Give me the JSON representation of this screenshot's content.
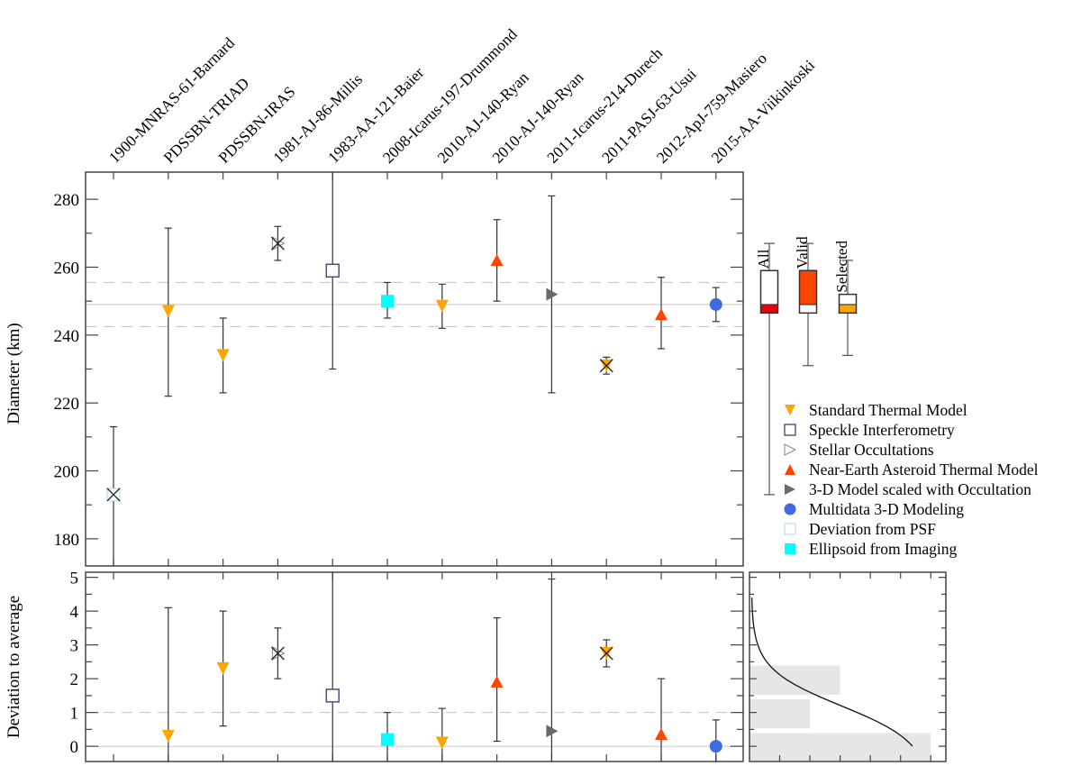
{
  "chart_data": {
    "type": "scatter",
    "title": "",
    "categories": [
      "1900-MNRAS-61-Barnard",
      "PDSSBN-TRIAD",
      "PDSSBN-IRAS",
      "1981-AJ-86-Millis",
      "1983-AA-121-Baier",
      "2008-Icarus-197-Drummond",
      "2010-AJ-140-Ryan",
      "2010-AJ-140-Ryan",
      "2011-Icarus-214-Durech",
      "2011-PASJ-63-Usui",
      "2012-ApJ-759-Masiero",
      "2015-AA-Viikinkoski"
    ],
    "colors": {
      "stm": "#ffa500",
      "speckle": "#333377",
      "occultation": "#888888",
      "neatm": "#ff4500",
      "model3d_occ": "#696969",
      "multidata": "#4169e1",
      "psf": "#add8e6",
      "ellipsoid": "#00ffff",
      "box_all": "#e8000b",
      "box_valid": "#ff4500",
      "box_selected": "#ffa500",
      "histogram": "#e6e6e6"
    },
    "diameter_panel": {
      "ylabel": "Diameter (km)",
      "ylim": [
        172,
        288
      ],
      "yticks": [
        180,
        200,
        220,
        240,
        260,
        280
      ],
      "mean": 249,
      "mean_minus_sigma": 242.5,
      "mean_plus_sigma": 255.5,
      "points": [
        {
          "category": 0,
          "method": "psf",
          "value": 193,
          "err_low": 172,
          "err_high": 213
        },
        {
          "category": 1,
          "method": "stm",
          "value": 247,
          "err_low": 222,
          "err_high": 271.5
        },
        {
          "category": 2,
          "method": "stm",
          "value": 234,
          "err_low": 223,
          "err_high": 245
        },
        {
          "category": 3,
          "method": "occultation",
          "value": 267,
          "err_low": 262,
          "err_high": 272
        },
        {
          "category": 4,
          "method": "speckle",
          "value": 259,
          "err_low": 230,
          "err_high": 288
        },
        {
          "category": 5,
          "method": "ellipsoid",
          "value": 250,
          "err_low": 245,
          "err_high": 255.5
        },
        {
          "category": 6,
          "method": "stm",
          "value": 248.5,
          "err_low": 242,
          "err_high": 255
        },
        {
          "category": 7,
          "method": "neatm",
          "value": 262,
          "err_low": 250,
          "err_high": 274
        },
        {
          "category": 8,
          "method": "model3d_occ",
          "value": 252,
          "err_low": 223,
          "err_high": 281
        },
        {
          "category": 9,
          "method": "stm_rejected",
          "value": 231,
          "err_low": 228.5,
          "err_high": 233.5
        },
        {
          "category": 10,
          "method": "neatm",
          "value": 246,
          "err_low": 236,
          "err_high": 257
        },
        {
          "category": 11,
          "method": "multidata",
          "value": 249,
          "err_low": 244,
          "err_high": 254
        }
      ],
      "rejected_categories": [
        0,
        3,
        9
      ]
    },
    "deviation_panel": {
      "ylabel": "Deviation to average",
      "ylim": [
        -0.45,
        5.15
      ],
      "yticks": [
        0,
        1,
        2,
        3,
        4,
        5
      ],
      "threshold": 1,
      "points": [
        {
          "category": 0,
          "method": "psf",
          "value": null,
          "err_low": null,
          "err_high": null
        },
        {
          "category": 1,
          "method": "stm",
          "value": 0.3,
          "err_low": -0.45,
          "err_high": 4.1
        },
        {
          "category": 2,
          "method": "stm",
          "value": 2.3,
          "err_low": 0.6,
          "err_high": 4.0
        },
        {
          "category": 3,
          "method": "occultation",
          "value": 2.75,
          "err_low": 2.0,
          "err_high": 3.5
        },
        {
          "category": 4,
          "method": "speckle",
          "value": 1.5,
          "err_low": -0.45,
          "err_high": 5.15
        },
        {
          "category": 5,
          "method": "ellipsoid",
          "value": 0.2,
          "err_low": -0.45,
          "err_high": 1.0
        },
        {
          "category": 6,
          "method": "stm",
          "value": 0.1,
          "err_low": -0.45,
          "err_high": 1.12
        },
        {
          "category": 7,
          "method": "neatm",
          "value": 1.9,
          "err_low": 0.15,
          "err_high": 3.8
        },
        {
          "category": 8,
          "method": "model3d_occ",
          "value": 0.45,
          "err_low": -0.45,
          "err_high": 4.95
        },
        {
          "category": 9,
          "method": "stm_rejected",
          "value": 2.75,
          "err_low": 2.35,
          "err_high": 3.15
        },
        {
          "category": 10,
          "method": "neatm",
          "value": 0.35,
          "err_low": -0.45,
          "err_high": 2.0
        },
        {
          "category": 11,
          "method": "multidata",
          "value": 0.0,
          "err_low": -0.45,
          "err_high": 0.78
        }
      ]
    },
    "boxplots": [
      {
        "label": "All",
        "whisker_low": 193,
        "q1": 246.5,
        "median": 249,
        "q3": 259,
        "whisker_high": 267,
        "fill": "box_all",
        "filled_part": "lower"
      },
      {
        "label": "Valid",
        "whisker_low": 231,
        "q1": 246.5,
        "median": 249,
        "q3": 259,
        "whisker_high": 267,
        "fill": "box_valid",
        "filled_part": "upper"
      },
      {
        "label": "Selected",
        "whisker_low": 234,
        "q1": 246.5,
        "median": 249,
        "q3": 252,
        "whisker_high": 262,
        "fill": "box_selected",
        "filled_part": "lower"
      }
    ],
    "histogram": {
      "bins": [
        {
          "from": -0.45,
          "to": 0.5,
          "count": 6
        },
        {
          "from": 0.5,
          "to": 1.5,
          "count": 2
        },
        {
          "from": 1.5,
          "to": 2.5,
          "count": 3
        }
      ],
      "xmax": 6.5,
      "cumulative_curve": true
    },
    "legend": [
      {
        "method": "stm",
        "marker": "triangle-down-filled",
        "label": "Standard Thermal Model"
      },
      {
        "method": "speckle",
        "marker": "square-open",
        "label": "Speckle Interferometry"
      },
      {
        "method": "occultation",
        "marker": "triangle-right-open",
        "label": "Stellar Occultations"
      },
      {
        "method": "neatm",
        "marker": "triangle-up-filled",
        "label": "Near-Earth Asteroid Thermal Model"
      },
      {
        "method": "model3d_occ",
        "marker": "triangle-right-filled",
        "label": "3-D Model scaled with Occultation"
      },
      {
        "method": "multidata",
        "marker": "circle-filled",
        "label": "Multidata 3-D Modeling"
      },
      {
        "method": "psf",
        "marker": "square-open-light",
        "label": "Deviation from PSF"
      },
      {
        "method": "ellipsoid",
        "marker": "square-filled",
        "label": "Ellipsoid from Imaging"
      }
    ],
    "legend_placement": "right"
  }
}
